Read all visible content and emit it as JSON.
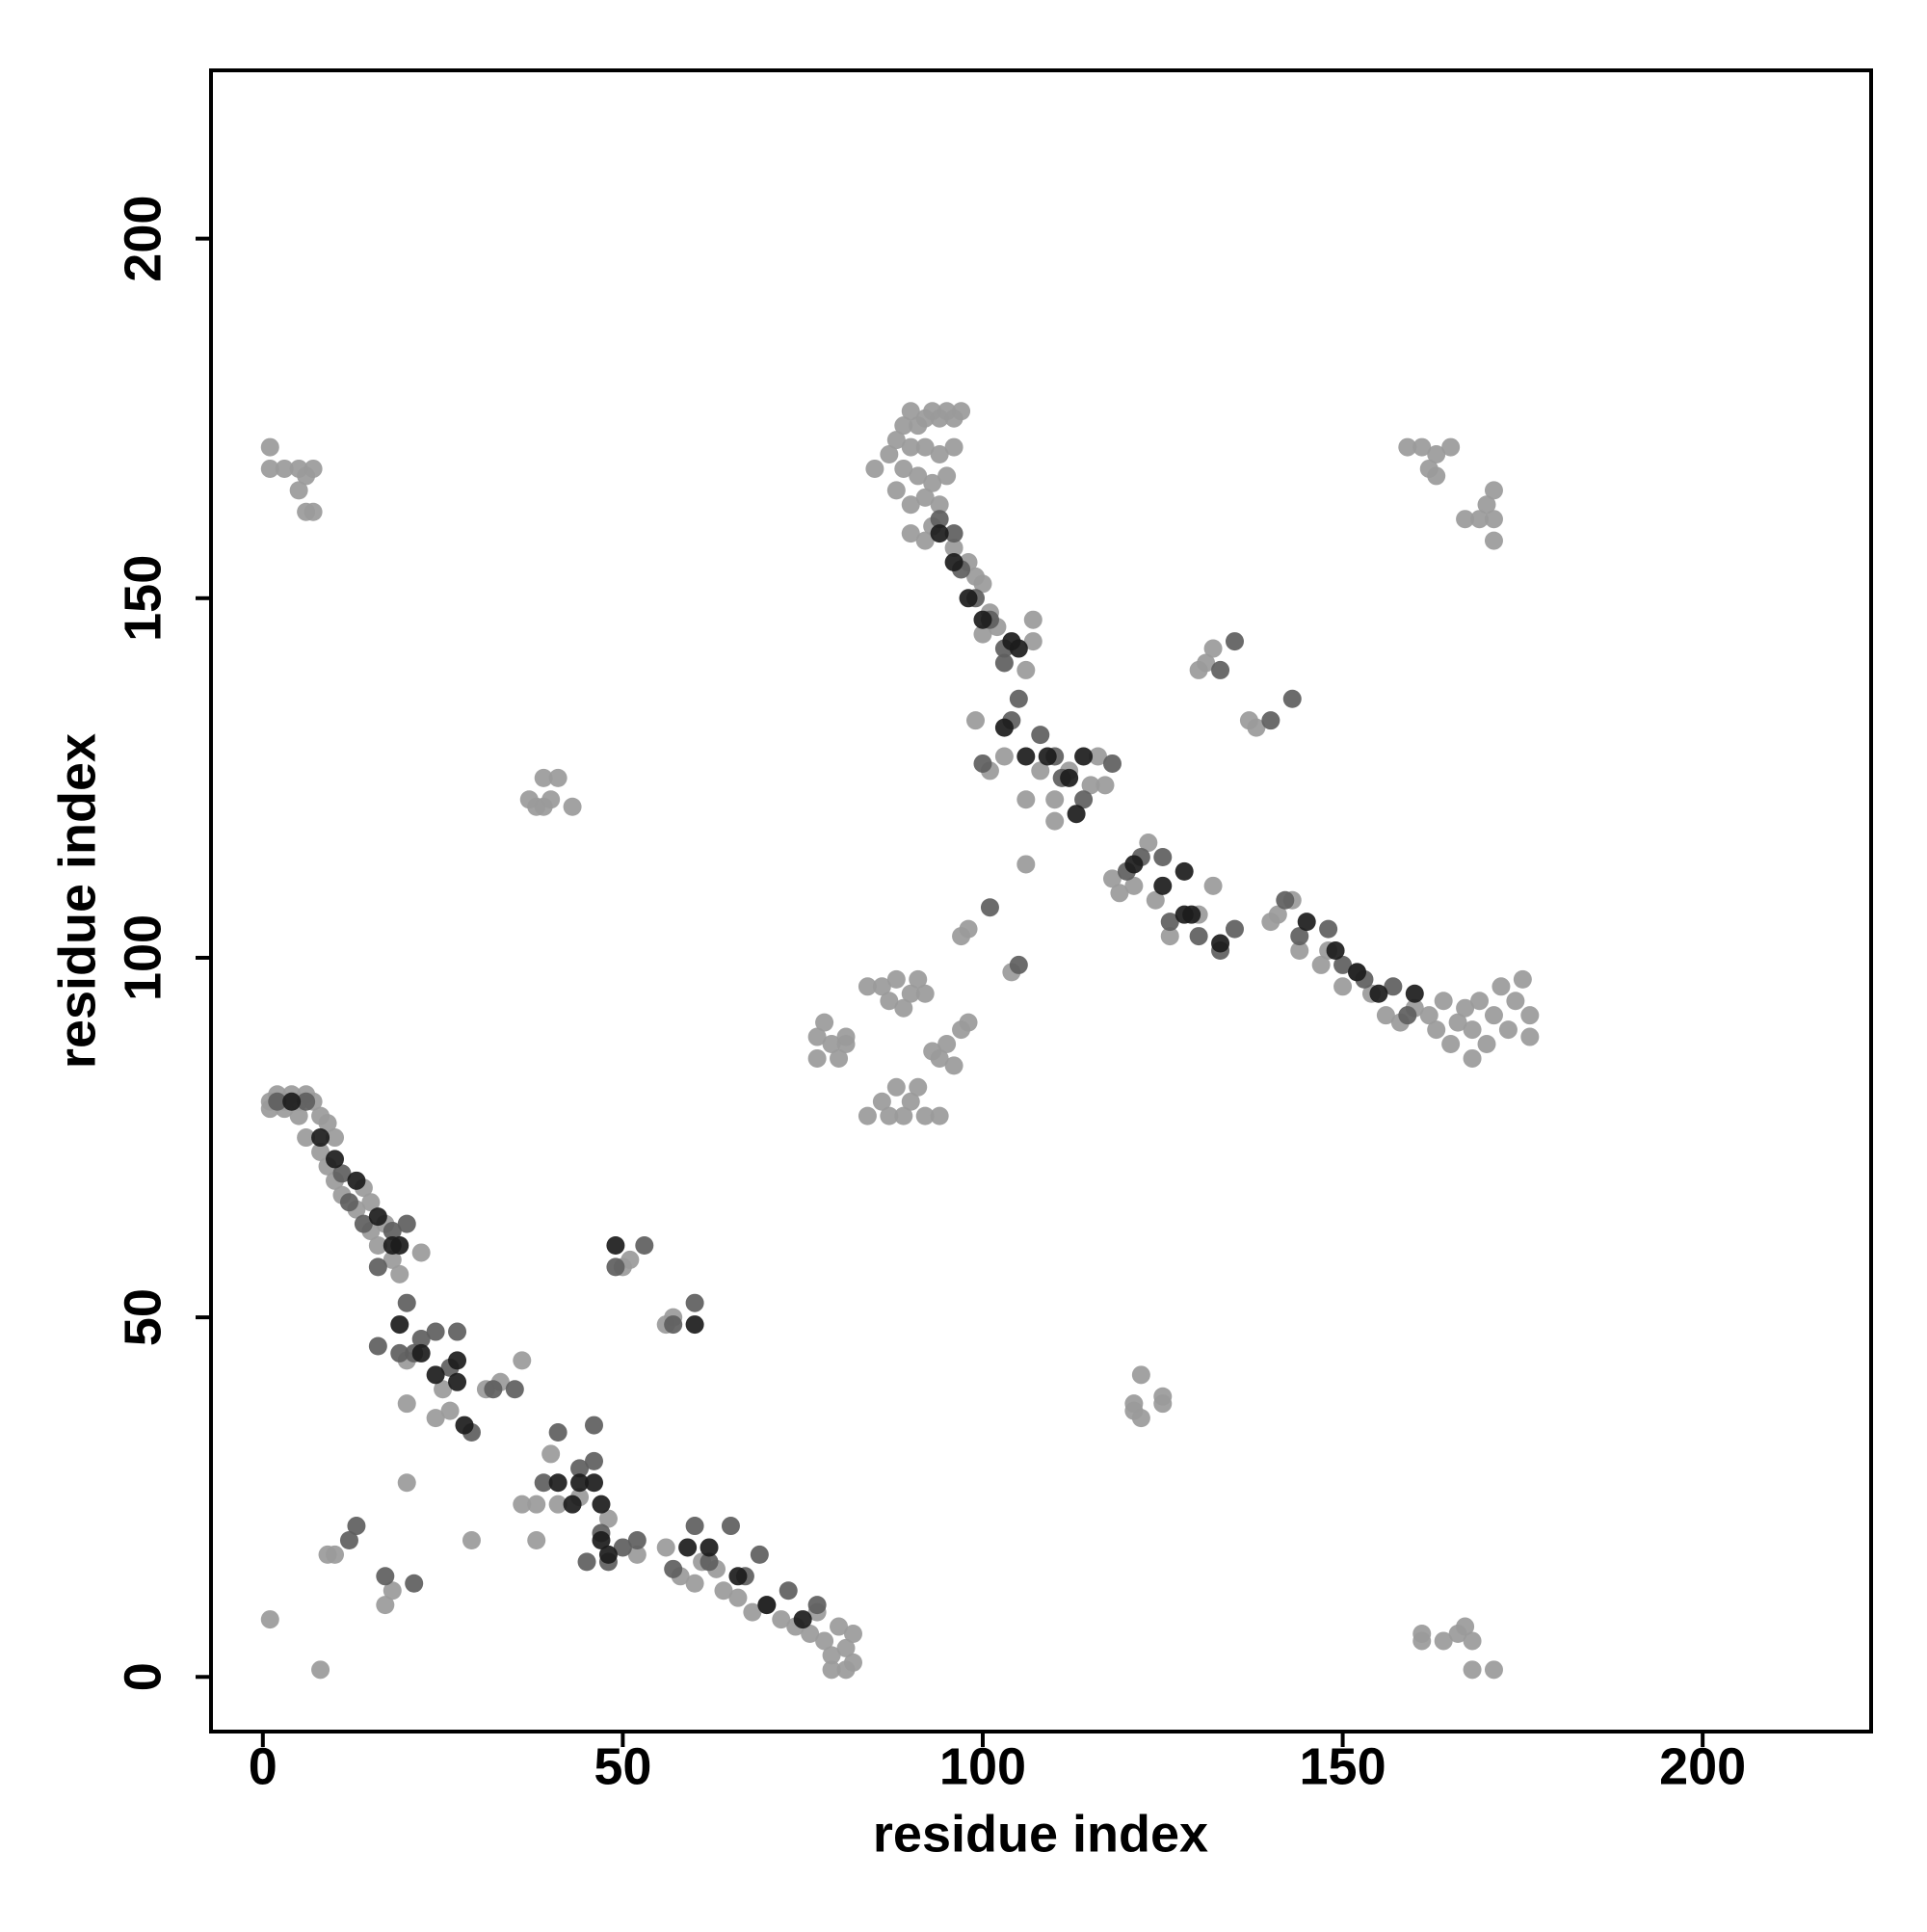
{
  "chart_data": {
    "type": "scatter",
    "xlabel": "residue index",
    "ylabel": "residue index",
    "xlim": [
      -7.2,
      223.4
    ],
    "ylim": [
      -7.6,
      223.4
    ],
    "xticks": [
      0,
      50,
      100,
      150,
      200
    ],
    "yticks": [
      0,
      50,
      100,
      150,
      200
    ],
    "series": [
      {
        "color": "#9a9a9a",
        "x": [
          1,
          2,
          3,
          4,
          5,
          6,
          7,
          1,
          3,
          5,
          8,
          9,
          10,
          6,
          8,
          10,
          9,
          11,
          13,
          14,
          15,
          15,
          16,
          18,
          19,
          22,
          17,
          20,
          25,
          26,
          20,
          24,
          31,
          33,
          36,
          29,
          20,
          36,
          38,
          38,
          41,
          40,
          44,
          48,
          52,
          56,
          58,
          60,
          61,
          63,
          64,
          66,
          68,
          70,
          72,
          74,
          76,
          78,
          79,
          79,
          81,
          82,
          81,
          82,
          80,
          77,
          1,
          8,
          17,
          18,
          9,
          10,
          1,
          1,
          3,
          5,
          6,
          7,
          5,
          6,
          7,
          37,
          38,
          39,
          40,
          39,
          41,
          43,
          50,
          51,
          56,
          57,
          85,
          87,
          88,
          89,
          90,
          91,
          92,
          93,
          94,
          95,
          96,
          97,
          90,
          92,
          94,
          96,
          89,
          91,
          93,
          95,
          88,
          90,
          92,
          94,
          93,
          90,
          92,
          96,
          98,
          99,
          100,
          101,
          100,
          102,
          106,
          107,
          107,
          99,
          101,
          103,
          106,
          108,
          110,
          110,
          112,
          115,
          117,
          116,
          104,
          106,
          97,
          98,
          118,
          119,
          121,
          123,
          124,
          126,
          130,
          132,
          130,
          131,
          132,
          137,
          138,
          140,
          141,
          143,
          144,
          147,
          148,
          150,
          152,
          154,
          156,
          158,
          160,
          162,
          163,
          164,
          165,
          166,
          167,
          168,
          168,
          169,
          170,
          171,
          172,
          173,
          174,
          175,
          176,
          176,
          159,
          161,
          163,
          165,
          162,
          163,
          167,
          169,
          170,
          171,
          171,
          171,
          161,
          161,
          164,
          166,
          167,
          168,
          168,
          171,
          121,
          121,
          122,
          122,
          125,
          125,
          77,
          77,
          78,
          79,
          80,
          81,
          81,
          84,
          86,
          87,
          88,
          89,
          90,
          91,
          92,
          84,
          86,
          87,
          88,
          89,
          90,
          91,
          92,
          94,
          93,
          94,
          95,
          96,
          97,
          98
        ],
        "y": [
          80,
          81,
          80,
          81,
          80,
          81,
          80,
          79,
          79,
          78,
          78,
          77,
          75,
          75,
          73,
          69,
          71,
          67,
          65,
          68,
          66,
          62,
          60,
          58,
          56,
          59,
          63,
          44,
          40,
          37,
          38,
          36,
          40,
          41,
          44,
          19,
          27,
          24,
          24,
          19,
          24,
          31,
          25,
          22,
          17,
          18,
          14,
          13,
          16,
          15,
          12,
          11,
          9,
          10,
          8,
          7,
          6,
          5,
          3,
          1,
          1,
          2,
          4,
          6,
          7,
          9,
          8,
          1,
          10,
          12,
          17,
          17,
          171,
          168,
          168,
          168,
          167,
          168,
          165,
          162,
          162,
          122,
          121,
          121,
          122,
          125,
          125,
          121,
          57,
          58,
          49,
          50,
          168,
          170,
          172,
          174,
          176,
          174,
          175,
          176,
          175,
          176,
          175,
          176,
          171,
          171,
          170,
          171,
          168,
          167,
          166,
          167,
          165,
          163,
          164,
          163,
          160,
          159,
          158,
          157,
          155,
          153,
          152,
          148,
          145,
          146,
          140,
          147,
          144,
          133,
          126,
          128,
          122,
          126,
          122,
          119,
          126,
          124,
          124,
          128,
          98,
          113,
          103,
          104,
          111,
          109,
          110,
          116,
          108,
          103,
          106,
          110,
          140,
          141,
          143,
          133,
          132,
          105,
          106,
          108,
          101,
          99,
          101,
          96,
          98,
          95,
          92,
          91,
          93,
          92,
          90,
          94,
          88,
          91,
          93,
          86,
          90,
          94,
          88,
          92,
          96,
          90,
          94,
          97,
          92,
          89,
          171,
          171,
          170,
          171,
          168,
          167,
          161,
          161,
          163,
          165,
          158,
          161,
          6,
          5,
          5,
          6,
          7,
          5,
          1,
          1,
          38,
          37,
          36,
          42,
          39,
          38,
          86,
          89,
          91,
          88,
          86,
          88,
          89,
          96,
          96,
          94,
          97,
          93,
          95,
          97,
          95,
          78,
          80,
          78,
          82,
          78,
          80,
          82,
          78,
          78,
          87,
          86,
          88,
          85,
          90,
          91
        ]
      },
      {
        "color": "#5e5e5e",
        "x": [
          2,
          6,
          11,
          12,
          14,
          16,
          18,
          20,
          20,
          16,
          19,
          21,
          22,
          24,
          27,
          26,
          29,
          32,
          35,
          39,
          41,
          44,
          46,
          46,
          47,
          45,
          48,
          50,
          52,
          57,
          60,
          62,
          65,
          67,
          69,
          73,
          77,
          49,
          53,
          57,
          60,
          13,
          21,
          12,
          17,
          94,
          96,
          97,
          99,
          101,
          103,
          105,
          103,
          108,
          110,
          111,
          114,
          118,
          100,
          104,
          120,
          122,
          125,
          126,
          130,
          133,
          135,
          142,
          144,
          148,
          150,
          153,
          157,
          159,
          133,
          135,
          140,
          143,
          101,
          105
        ],
        "y": [
          80,
          80,
          70,
          66,
          63,
          57,
          62,
          63,
          52,
          46,
          45,
          45,
          47,
          48,
          48,
          43,
          34,
          40,
          40,
          27,
          34,
          29,
          35,
          30,
          20,
          16,
          16,
          18,
          19,
          15,
          21,
          16,
          21,
          14,
          17,
          12,
          10,
          57,
          60,
          49,
          52,
          21,
          13,
          19,
          14,
          161,
          159,
          154,
          150,
          147,
          141,
          136,
          143,
          131,
          128,
          125,
          122,
          127,
          127,
          133,
          112,
          114,
          114,
          105,
          103,
          101,
          104,
          108,
          103,
          104,
          99,
          97,
          96,
          92,
          140,
          144,
          133,
          136,
          107,
          99
        ]
      },
      {
        "color": "#1c1c1c",
        "x": [
          4,
          8,
          10,
          13,
          16,
          18,
          19,
          19,
          22,
          24,
          27,
          27,
          28,
          41,
          43,
          44,
          46,
          47,
          47,
          48,
          59,
          62,
          66,
          70,
          75,
          49,
          60,
          94,
          96,
          98,
          100,
          104,
          105,
          103,
          106,
          109,
          112,
          114,
          113,
          121,
          125,
          128,
          128,
          129,
          133,
          145,
          149,
          152,
          155,
          160
        ],
        "y": [
          80,
          75,
          72,
          69,
          64,
          60,
          60,
          49,
          45,
          42,
          44,
          41,
          35,
          27,
          24,
          27,
          27,
          24,
          19,
          17,
          18,
          18,
          14,
          10,
          8,
          60,
          49,
          159,
          155,
          150,
          147,
          144,
          143,
          132,
          128,
          128,
          125,
          128,
          120,
          113,
          110,
          112,
          106,
          106,
          102,
          105,
          101,
          98,
          95,
          95
        ]
      }
    ]
  }
}
